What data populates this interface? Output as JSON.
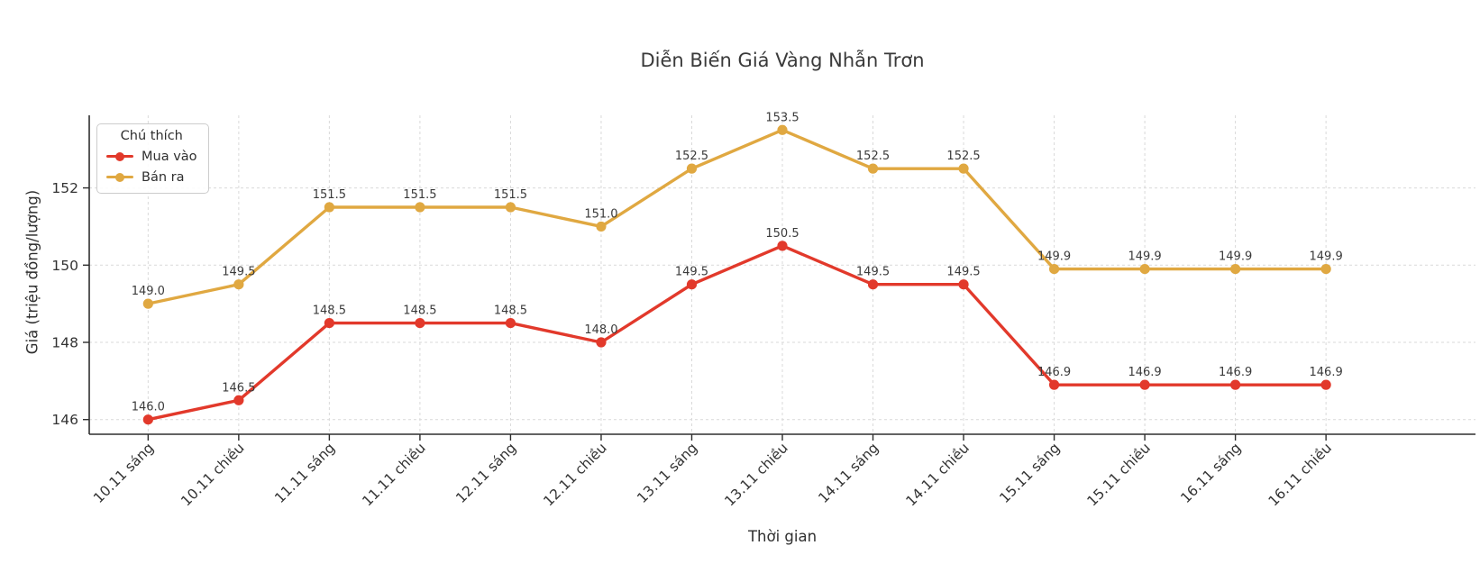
{
  "title": "Diễn Biến Giá Vàng Nhẫn Trơn",
  "legend": {
    "title": "Chú thích",
    "entries": [
      {
        "label": "Mua vào",
        "color": "#e2392b"
      },
      {
        "label": "Bán ra",
        "color": "#e0a841"
      }
    ]
  },
  "colors": {
    "buy_line": "#e2392b",
    "sell_line": "#e0a841",
    "grid": "#d9d9d9",
    "spine": "#2e2e2e",
    "tick_text": "#333333",
    "point_label_text": "#3a3a3a",
    "background": "#ffffff"
  },
  "chart_data": {
    "type": "line",
    "title": "Diễn Biến Giá Vàng Nhẫn Trơn",
    "xlabel": "Thời gian",
    "ylabel": "Giá (triệu đồng/lượng)",
    "categories": [
      "10.11 sáng",
      "10.11 chiều",
      "11.11 sáng",
      "11.11 chiều",
      "12.11 sáng",
      "12.11 chiều",
      "13.11 sáng",
      "13.11 chiều",
      "14.11 sáng",
      "14.11 chiều",
      "15.11 sáng",
      "15.11 chiều",
      "16.11 sáng",
      "16.11 chiều"
    ],
    "series": [
      {
        "name": "Mua vào",
        "color": "#e2392b",
        "values": [
          146.0,
          146.5,
          148.5,
          148.5,
          148.5,
          148.0,
          149.5,
          150.5,
          149.5,
          149.5,
          146.9,
          146.9,
          146.9,
          146.9
        ]
      },
      {
        "name": "Bán ra",
        "color": "#e0a841",
        "values": [
          149.0,
          149.5,
          151.5,
          151.5,
          151.5,
          151.0,
          152.5,
          153.5,
          152.5,
          152.5,
          149.9,
          149.9,
          149.9,
          149.9
        ]
      }
    ],
    "yticks": [
      146,
      148,
      150,
      152
    ],
    "ylim": [
      145.62,
      153.88
    ],
    "grid": true,
    "grid_style": "dashed",
    "legend_position": "upper left",
    "point_labels": true,
    "point_label_decimals": 1,
    "x_tick_rotation": 45
  }
}
